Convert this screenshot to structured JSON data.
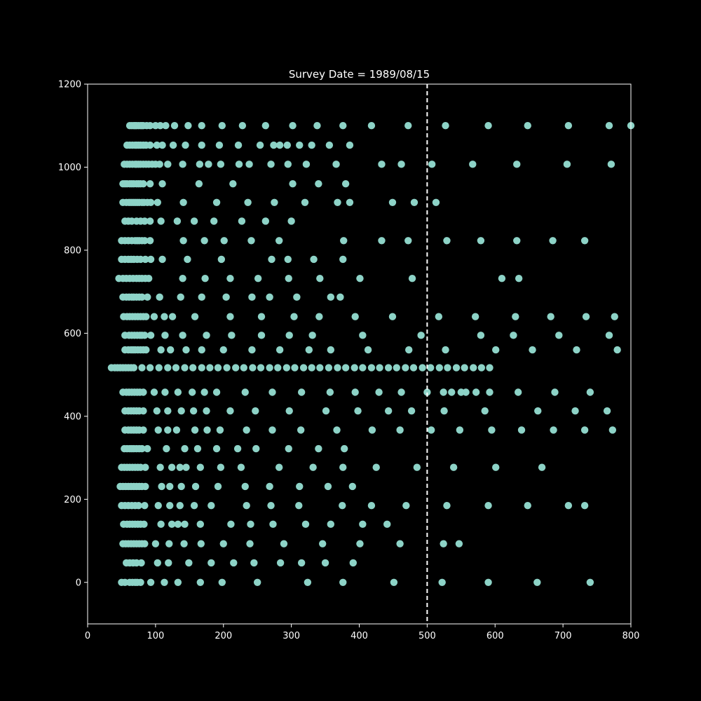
{
  "chart_data": {
    "type": "scatter",
    "title": "Survey Date = 1989/08/15",
    "xlabel": "",
    "ylabel": "",
    "xlim": [
      0,
      800
    ],
    "ylim": [
      -100,
      1200
    ],
    "x_ticks": [
      0,
      100,
      200,
      300,
      400,
      500,
      600,
      700,
      800
    ],
    "y_ticks": [
      0,
      200,
      400,
      600,
      800,
      1000,
      1200
    ],
    "grid": false,
    "reference_line": {
      "axis": "x",
      "value": 500,
      "style": "dashed",
      "color": "#ffffff"
    },
    "colors": {
      "background": "#000000",
      "axes": "#ffffff",
      "marker": "#8dd3c7"
    },
    "rows": [
      {
        "y": 1100,
        "x": [
          62,
          65,
          68,
          70,
          72,
          75,
          78,
          80,
          82,
          87,
          92,
          100,
          107,
          115,
          128,
          148,
          168,
          198,
          228,
          262,
          302,
          338,
          376,
          418,
          472,
          527,
          590,
          648,
          708,
          768,
          800
        ]
      },
      {
        "y": 1053,
        "x": [
          58,
          62,
          66,
          70,
          72,
          75,
          78,
          82,
          86,
          92,
          102,
          110,
          126,
          144,
          168,
          194,
          222,
          254,
          274,
          283,
          294,
          312,
          330,
          356,
          386
        ]
      },
      {
        "y": 1007,
        "x": [
          54,
          58,
          62,
          66,
          70,
          72,
          75,
          78,
          82,
          86,
          90,
          95,
          100,
          106,
          118,
          140,
          165,
          178,
          196,
          223,
          238,
          270,
          295,
          322,
          366,
          433,
          462,
          507,
          567,
          632,
          706,
          771
        ]
      },
      {
        "y": 960,
        "x": [
          52,
          55,
          58,
          62,
          65,
          68,
          72,
          75,
          78,
          82,
          92,
          110,
          164,
          214,
          302,
          340,
          380
        ]
      },
      {
        "y": 915,
        "x": [
          52,
          57,
          61,
          64,
          67,
          70,
          73,
          76,
          80,
          83,
          88,
          93,
          103,
          141,
          190,
          236,
          275,
          320,
          368,
          386,
          449,
          481,
          513
        ]
      },
      {
        "y": 870,
        "x": [
          55,
          60,
          65,
          72,
          78,
          84,
          92,
          108,
          132,
          157,
          186,
          227,
          262,
          300
        ]
      },
      {
        "y": 823,
        "x": [
          50,
          55,
          60,
          65,
          70,
          73,
          76,
          80,
          84,
          92,
          141,
          172,
          201,
          241,
          282,
          377,
          433,
          472,
          529,
          579,
          632,
          685,
          732
        ]
      },
      {
        "y": 778,
        "x": [
          50,
          55,
          60,
          64,
          68,
          73,
          78,
          85,
          93,
          110,
          147,
          197,
          271,
          295,
          333,
          376
        ]
      },
      {
        "y": 732,
        "x": [
          46,
          52,
          57,
          62,
          67,
          72,
          76,
          80,
          85,
          90,
          140,
          173,
          210,
          251,
          296,
          342,
          401,
          478,
          610,
          635
        ]
      },
      {
        "y": 687,
        "x": [
          52,
          57,
          61,
          65,
          68,
          72,
          76,
          80,
          88,
          106,
          137,
          168,
          204,
          242,
          268,
          308,
          358,
          372
        ]
      },
      {
        "y": 640,
        "x": [
          53,
          58,
          62,
          66,
          70,
          74,
          78,
          82,
          86,
          98,
          113,
          125,
          158,
          210,
          256,
          304,
          341,
          394,
          449,
          517,
          571,
          630,
          682,
          734,
          776
        ]
      },
      {
        "y": 595,
        "x": [
          55,
          61,
          65,
          69,
          73,
          77,
          80,
          84,
          93,
          114,
          140,
          175,
          212,
          256,
          297,
          331,
          405,
          491,
          579,
          627,
          694,
          768
        ]
      },
      {
        "y": 560,
        "x": [
          55,
          60,
          64,
          67,
          70,
          74,
          78,
          82,
          86,
          108,
          122,
          145,
          168,
          200,
          242,
          283,
          326,
          358,
          413,
          473,
          527,
          601,
          655,
          720,
          780
        ]
      },
      {
        "y": 517,
        "x": [
          35,
          40,
          44,
          48,
          52,
          56,
          60,
          64,
          68,
          80,
          92,
          105,
          118,
          130,
          143,
          155,
          168,
          180,
          192,
          205,
          218,
          230,
          243,
          255,
          268,
          280,
          293,
          305,
          318,
          330,
          342,
          355,
          368,
          380,
          393,
          405,
          418,
          430,
          443,
          455,
          468,
          480,
          493,
          505,
          518,
          530,
          543,
          555,
          568,
          580,
          592
        ]
      },
      {
        "y": 458,
        "x": [
          52,
          57,
          61,
          65,
          69,
          73,
          77,
          82,
          98,
          114,
          133,
          154,
          172,
          190,
          232,
          272,
          315,
          357,
          394,
          429,
          462,
          500,
          524,
          536,
          550,
          557,
          572,
          592,
          634,
          688,
          740
        ]
      },
      {
        "y": 413,
        "x": [
          55,
          60,
          64,
          68,
          72,
          76,
          82,
          102,
          118,
          138,
          156,
          175,
          210,
          247,
          297,
          351,
          398,
          443,
          477,
          525,
          585,
          663,
          718,
          765
        ]
      },
      {
        "y": 367,
        "x": [
          55,
          60,
          64,
          68,
          72,
          76,
          82,
          104,
          118,
          131,
          158,
          176,
          195,
          234,
          272,
          314,
          367,
          419,
          460,
          506,
          548,
          595,
          639,
          686,
          732,
          773
        ]
      },
      {
        "y": 322,
        "x": [
          54,
          58,
          62,
          65,
          68,
          72,
          76,
          80,
          88,
          116,
          143,
          162,
          190,
          221,
          248,
          296,
          340,
          378
        ]
      },
      {
        "y": 277,
        "x": [
          50,
          54,
          58,
          62,
          66,
          70,
          74,
          78,
          85,
          107,
          124,
          136,
          145,
          166,
          196,
          226,
          282,
          332,
          376,
          425,
          485,
          539,
          601,
          669
        ]
      },
      {
        "y": 231,
        "x": [
          48,
          52,
          56,
          60,
          64,
          68,
          72,
          76,
          80,
          85,
          109,
          121,
          138,
          159,
          192,
          232,
          268,
          312,
          354,
          390
        ]
      },
      {
        "y": 185,
        "x": [
          50,
          55,
          60,
          65,
          70,
          75,
          84,
          104,
          121,
          136,
          157,
          182,
          234,
          270,
          311,
          375,
          418,
          469,
          529,
          590,
          648,
          708,
          732
        ]
      },
      {
        "y": 140,
        "x": [
          53,
          58,
          62,
          66,
          70,
          74,
          78,
          83,
          108,
          124,
          133,
          143,
          166,
          211,
          240,
          273,
          321,
          358,
          405,
          441
        ]
      },
      {
        "y": 93,
        "x": [
          52,
          56,
          60,
          64,
          68,
          72,
          76,
          80,
          84,
          100,
          120,
          142,
          167,
          200,
          239,
          289,
          346,
          401,
          460,
          524,
          547
        ]
      },
      {
        "y": 47,
        "x": [
          57,
          62,
          67,
          72,
          79,
          103,
          119,
          149,
          182,
          215,
          245,
          284,
          315,
          350,
          391
        ]
      },
      {
        "y": 0,
        "x": [
          50,
          55,
          62,
          66,
          70,
          73,
          78,
          93,
          113,
          133,
          166,
          198,
          250,
          324,
          376,
          451,
          522,
          590,
          662,
          740
        ]
      }
    ]
  }
}
